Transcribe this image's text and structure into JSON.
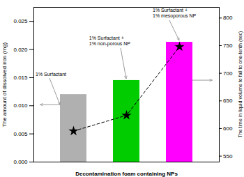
{
  "chart_data": {
    "type": "bar",
    "categories": [
      null,
      null,
      null
    ],
    "series": [
      {
        "type": "bar",
        "colors": [
          "#b0b0b0",
          "#00cc00",
          "#ff00ff"
        ],
        "values": [
          0.012,
          0.0145,
          0.0213
        ]
      },
      {
        "type": "line",
        "color": "#000000",
        "line_style": "dashed",
        "marker": "star",
        "values": [
          0.0055,
          0.0083,
          0.0205
        ]
      }
    ],
    "xlabel": "Decontamination foam containing NPs",
    "ylabel": "The amount of dissolved iron (mg)",
    "y2label": "The time in liquid volume to fall to one-tenth (sec)",
    "ylim": [
      0.0,
      0.0275
    ],
    "yticks": [
      {
        "value": 0,
        "label": "0.000"
      },
      0.005,
      {
        "value": 0.01,
        "label": "0.010"
      },
      0.015,
      {
        "value": 0.02,
        "label": "0.020"
      },
      0.025
    ],
    "y2lim": [
      540,
      820
    ],
    "y2ticks": [
      550,
      600,
      650,
      700,
      750,
      800
    ],
    "tick_labels": "y",
    "annotations": [
      "1% Surfactant",
      "1% Surfactant +\n1% non-porous NP",
      "1% Surfactant +\n1% mesoporous NP"
    ]
  }
}
